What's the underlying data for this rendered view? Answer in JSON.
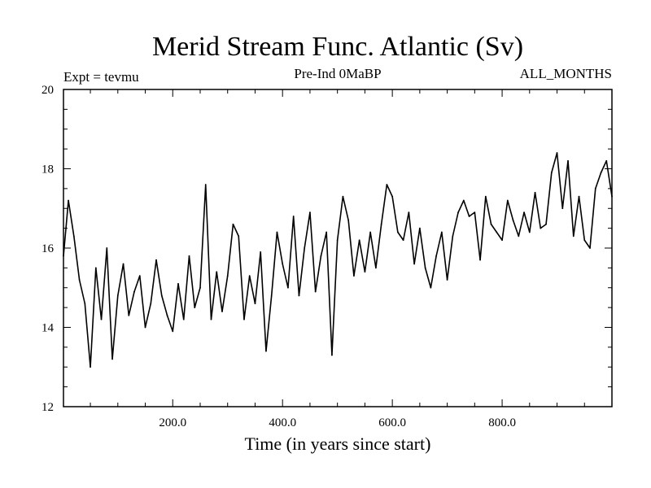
{
  "chart_data": {
    "type": "line",
    "title": "Merid Stream Func. Atlantic (Sv)",
    "subtitle_left": "Expt = tevmu",
    "subtitle_center": "Pre-Ind 0MaBP",
    "subtitle_right": "ALL_MONTHS",
    "xlabel": "Time (in years since start)",
    "ylabel": "",
    "xlim": [
      1,
      1000
    ],
    "ylim": [
      12,
      20
    ],
    "x_ticks": [
      200,
      400,
      600,
      800
    ],
    "x_tick_labels": [
      "200.0",
      "400.0",
      "600.0",
      "800.0"
    ],
    "y_ticks": [
      12,
      14,
      16,
      18,
      20
    ],
    "y_tick_labels": [
      "12",
      "14",
      "16",
      "18",
      "20"
    ],
    "series": [
      {
        "name": "Merid Stream Func. Atlantic",
        "color": "#000000",
        "x": [
          1,
          10,
          20,
          30,
          40,
          50,
          60,
          70,
          80,
          90,
          100,
          110,
          120,
          130,
          140,
          150,
          160,
          170,
          180,
          190,
          200,
          210,
          220,
          230,
          240,
          250,
          260,
          270,
          280,
          290,
          300,
          310,
          320,
          330,
          340,
          350,
          360,
          370,
          380,
          390,
          400,
          410,
          420,
          430,
          440,
          450,
          460,
          470,
          480,
          490,
          500,
          510,
          520,
          530,
          540,
          550,
          560,
          570,
          580,
          590,
          600,
          610,
          620,
          630,
          640,
          650,
          660,
          670,
          680,
          690,
          700,
          710,
          720,
          730,
          740,
          750,
          760,
          770,
          780,
          790,
          800,
          810,
          820,
          830,
          840,
          850,
          860,
          870,
          880,
          890,
          900,
          910,
          920,
          930,
          940,
          950,
          960,
          970,
          980,
          990,
          1000
        ],
        "values": [
          15.8,
          17.2,
          16.3,
          15.2,
          14.6,
          13.0,
          15.5,
          14.2,
          16.0,
          13.2,
          14.8,
          15.6,
          14.3,
          14.9,
          15.3,
          14.0,
          14.6,
          15.7,
          14.8,
          14.3,
          13.9,
          15.1,
          14.2,
          15.8,
          14.5,
          15.0,
          17.6,
          14.2,
          15.4,
          14.4,
          15.3,
          16.6,
          16.3,
          14.2,
          15.3,
          14.6,
          15.9,
          13.4,
          14.8,
          16.4,
          15.6,
          15.0,
          16.8,
          14.8,
          16.0,
          16.9,
          14.9,
          15.8,
          16.4,
          13.3,
          16.2,
          17.3,
          16.7,
          15.3,
          16.2,
          15.4,
          16.4,
          15.5,
          16.6,
          17.6,
          17.3,
          16.4,
          16.2,
          16.9,
          15.6,
          16.5,
          15.5,
          15.0,
          15.8,
          16.4,
          15.2,
          16.3,
          16.9,
          17.2,
          16.8,
          16.9,
          15.7,
          17.3,
          16.6,
          16.4,
          16.2,
          17.2,
          16.7,
          16.3,
          16.9,
          16.4,
          17.4,
          16.5,
          16.6,
          17.9,
          18.4,
          17.0,
          18.2,
          16.3,
          17.3,
          16.2,
          16.0,
          17.5,
          17.9,
          18.2,
          17.3
        ]
      }
    ]
  }
}
